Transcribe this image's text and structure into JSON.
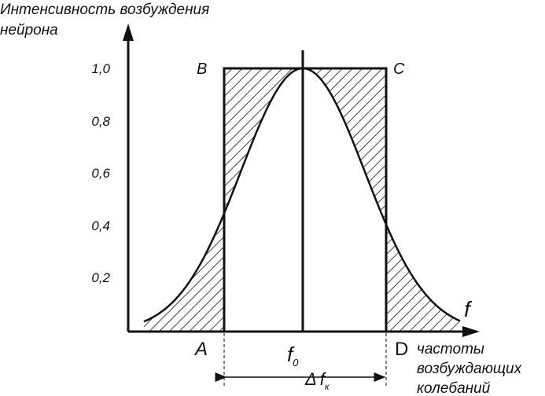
{
  "y_axis_label": [
    "Интенсивность возбуждения",
    "нейрона"
  ],
  "y_ticks": [
    "1,0",
    "0,8",
    "0,6",
    "0,4",
    "0,2"
  ],
  "points": {
    "A": "A",
    "B": "B",
    "C": "C",
    "D": "D"
  },
  "x_axis_symbol": "f",
  "center_label": {
    "main": "f",
    "sub": "0"
  },
  "width_label": {
    "delta": "Δ",
    "main": "f",
    "sub": "к"
  },
  "x_axis_label": [
    "частоты",
    "возбуждающих",
    "колебаний"
  ]
}
